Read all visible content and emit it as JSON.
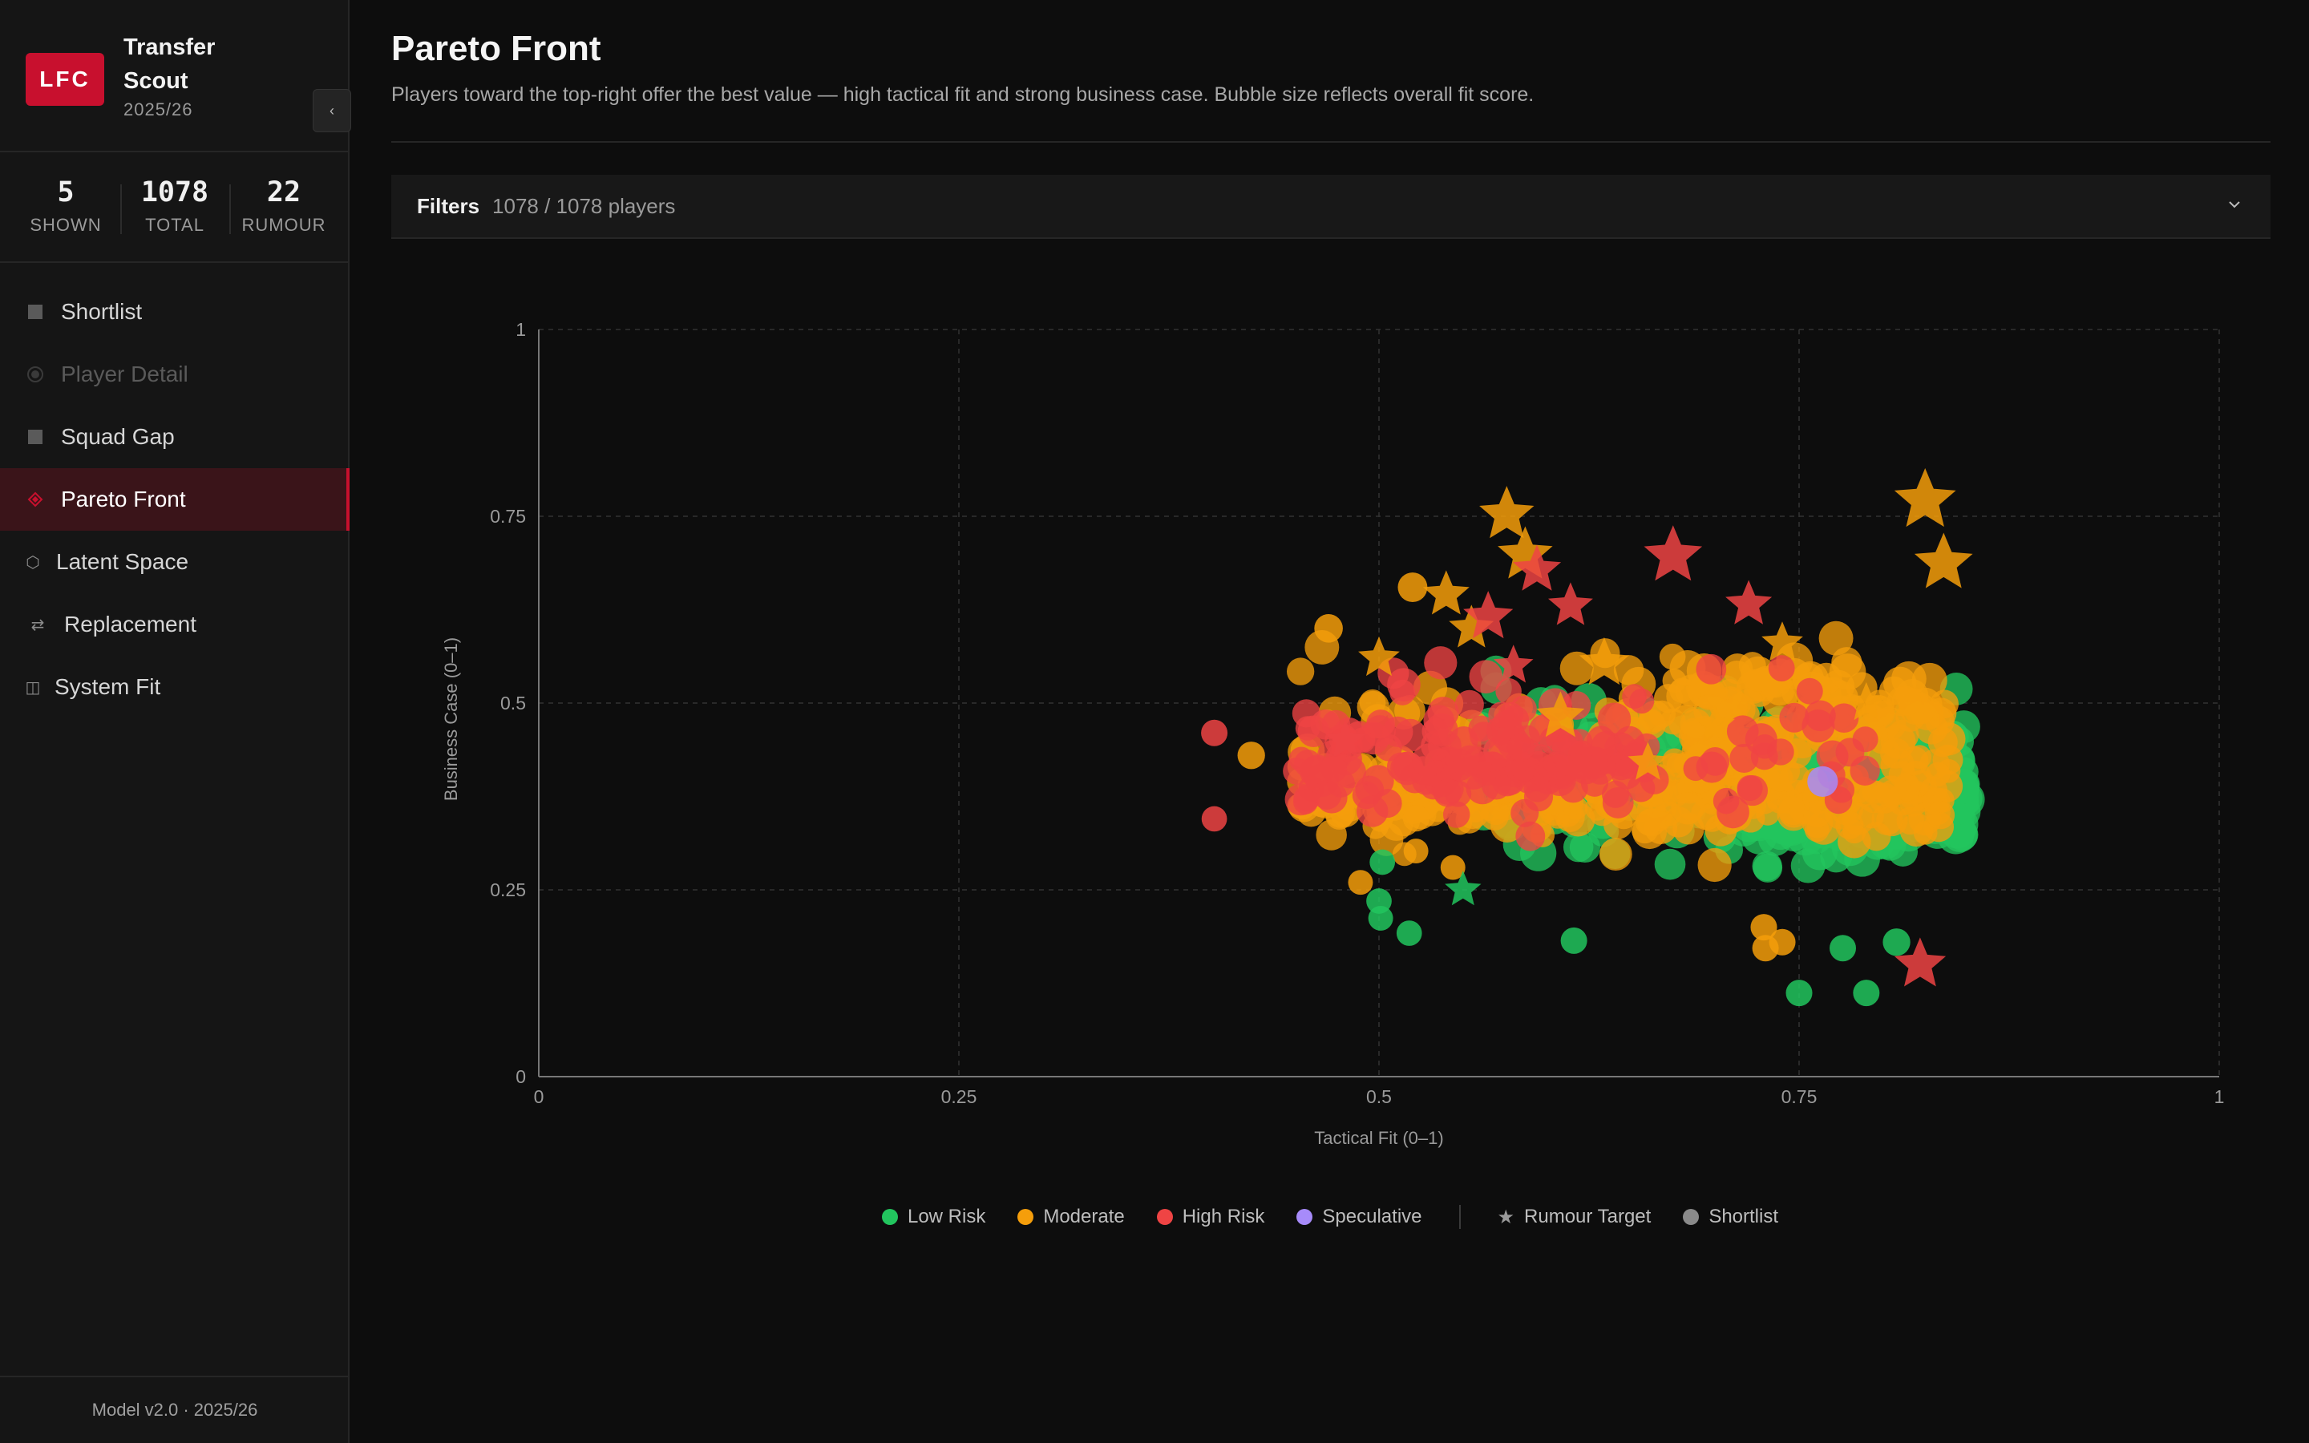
{
  "app": {
    "logo": "LFC",
    "title": "Transfer Scout",
    "season": "2025/26",
    "collapse_icon": "‹"
  },
  "stats": [
    {
      "value": "5",
      "label": "SHOWN"
    },
    {
      "value": "1078",
      "label": "TOTAL"
    },
    {
      "value": "22",
      "label": "RUMOUR"
    }
  ],
  "nav": [
    {
      "label": "Shortlist",
      "icon": "square-icon",
      "state": "normal"
    },
    {
      "label": "Player Detail",
      "icon": "radio-icon",
      "state": "disabled"
    },
    {
      "label": "Squad Gap",
      "icon": "square-icon",
      "state": "normal"
    },
    {
      "label": "Pareto Front",
      "icon": "diamond-icon",
      "state": "active"
    },
    {
      "label": "Latent Space",
      "icon": "hexagon-icon",
      "state": "normal"
    },
    {
      "label": "Replacement",
      "icon": "swap-icon",
      "state": "normal"
    },
    {
      "label": "System Fit",
      "icon": "columns-icon",
      "state": "normal"
    }
  ],
  "footer": "Model v2.0 · 2025/26",
  "page": {
    "title": "Pareto Front",
    "subtitle": "Players toward the top-right offer the best value — high tactical fit and strong business case. Bubble size reflects overall fit score."
  },
  "filters": {
    "label": "Filters",
    "count": "1078 / 1078 players"
  },
  "colors": {
    "low": "#22c55e",
    "moderate": "#f59e0b",
    "high": "#ef4444",
    "speculative": "#a78bfa",
    "shortlist": "#8a8a8a",
    "accent": "#c8102e"
  },
  "chart_data": {
    "type": "scatter",
    "xlabel": "Tactical Fit (0–1)",
    "ylabel": "Business Case (0–1)",
    "xlim": [
      0,
      1
    ],
    "ylim": [
      0,
      1
    ],
    "x_ticks": [
      "0",
      "0.25",
      "0.5",
      "0.75",
      "1"
    ],
    "y_ticks": [
      "0",
      "0.25",
      "0.5",
      "0.75",
      "1"
    ],
    "grid": true,
    "legend_placement": "bottom-center",
    "legend": [
      {
        "label": "Low Risk",
        "key": "low"
      },
      {
        "label": "Moderate",
        "key": "moderate"
      },
      {
        "label": "High Risk",
        "key": "high"
      },
      {
        "label": "Speculative",
        "key": "speculative"
      },
      {
        "label": "Rumour Target",
        "key": "rumour"
      },
      {
        "label": "Shortlist",
        "key": "shortlist"
      }
    ],
    "clusters": [
      {
        "risk": "low",
        "x": [
          0.56,
          0.85
        ],
        "y": [
          0.25,
          0.55
        ],
        "count": 220,
        "size": [
          0.55,
          1.0
        ]
      },
      {
        "risk": "low",
        "x": [
          0.72,
          0.85
        ],
        "y": [
          0.24,
          0.52
        ],
        "count": 160,
        "size": [
          0.6,
          1.0
        ]
      },
      {
        "risk": "moderate",
        "x": [
          0.45,
          0.84
        ],
        "y": [
          0.3,
          0.45
        ],
        "count": 230,
        "size": [
          0.35,
          0.85
        ]
      },
      {
        "risk": "moderate",
        "x": [
          0.45,
          0.84
        ],
        "y": [
          0.25,
          0.63
        ],
        "count": 160,
        "size": [
          0.35,
          0.9
        ]
      },
      {
        "risk": "moderate",
        "x": [
          0.68,
          0.84
        ],
        "y": [
          0.38,
          0.6
        ],
        "count": 80,
        "size": [
          0.6,
          1.0
        ]
      },
      {
        "risk": "high",
        "x": [
          0.45,
          0.66
        ],
        "y": [
          0.33,
          0.5
        ],
        "count": 120,
        "size": [
          0.45,
          0.85
        ]
      },
      {
        "risk": "high",
        "x": [
          0.45,
          0.79
        ],
        "y": [
          0.3,
          0.6
        ],
        "count": 70,
        "size": [
          0.4,
          0.85
        ]
      }
    ],
    "points": [
      {
        "x": 0.402,
        "y": 0.46,
        "size": 0.5,
        "risk": "high"
      },
      {
        "x": 0.402,
        "y": 0.345,
        "size": 0.45,
        "risk": "high"
      },
      {
        "x": 0.424,
        "y": 0.43,
        "size": 0.55,
        "risk": "moderate"
      },
      {
        "x": 0.5,
        "y": 0.235,
        "size": 0.45,
        "risk": "low"
      },
      {
        "x": 0.501,
        "y": 0.212,
        "size": 0.42,
        "risk": "low"
      },
      {
        "x": 0.518,
        "y": 0.192,
        "size": 0.45,
        "risk": "low"
      },
      {
        "x": 0.502,
        "y": 0.287,
        "size": 0.45,
        "risk": "low"
      },
      {
        "x": 0.544,
        "y": 0.28,
        "size": 0.42,
        "risk": "moderate"
      },
      {
        "x": 0.522,
        "y": 0.302,
        "size": 0.42,
        "risk": "moderate"
      },
      {
        "x": 0.489,
        "y": 0.26,
        "size": 0.42,
        "risk": "moderate"
      },
      {
        "x": 0.47,
        "y": 0.6,
        "size": 0.6,
        "risk": "moderate"
      },
      {
        "x": 0.52,
        "y": 0.655,
        "size": 0.65,
        "risk": "moderate"
      },
      {
        "x": 0.616,
        "y": 0.182,
        "size": 0.5,
        "risk": "low"
      },
      {
        "x": 0.75,
        "y": 0.112,
        "size": 0.5,
        "risk": "low"
      },
      {
        "x": 0.79,
        "y": 0.112,
        "size": 0.5,
        "risk": "low"
      },
      {
        "x": 0.776,
        "y": 0.172,
        "size": 0.5,
        "risk": "low"
      },
      {
        "x": 0.808,
        "y": 0.18,
        "size": 0.55,
        "risk": "low"
      },
      {
        "x": 0.729,
        "y": 0.2,
        "size": 0.5,
        "risk": "moderate"
      },
      {
        "x": 0.73,
        "y": 0.172,
        "size": 0.5,
        "risk": "moderate"
      },
      {
        "x": 0.74,
        "y": 0.18,
        "size": 0.5,
        "risk": "moderate"
      },
      {
        "x": 0.764,
        "y": 0.395,
        "size": 0.7,
        "risk": "speculative"
      }
    ],
    "rumour_targets": [
      {
        "x": 0.576,
        "y": 0.752,
        "size": 1.0,
        "risk": "moderate"
      },
      {
        "x": 0.587,
        "y": 0.698,
        "size": 1.0,
        "risk": "moderate"
      },
      {
        "x": 0.594,
        "y": 0.678,
        "size": 0.8,
        "risk": "high"
      },
      {
        "x": 0.675,
        "y": 0.697,
        "size": 1.1,
        "risk": "high"
      },
      {
        "x": 0.825,
        "y": 0.771,
        "size": 1.2,
        "risk": "moderate"
      },
      {
        "x": 0.836,
        "y": 0.687,
        "size": 1.1,
        "risk": "moderate"
      },
      {
        "x": 0.54,
        "y": 0.645,
        "size": 0.75,
        "risk": "moderate"
      },
      {
        "x": 0.555,
        "y": 0.6,
        "size": 0.7,
        "risk": "moderate"
      },
      {
        "x": 0.565,
        "y": 0.615,
        "size": 0.85,
        "risk": "high"
      },
      {
        "x": 0.614,
        "y": 0.63,
        "size": 0.7,
        "risk": "high"
      },
      {
        "x": 0.634,
        "y": 0.553,
        "size": 0.85,
        "risk": "moderate"
      },
      {
        "x": 0.608,
        "y": 0.482,
        "size": 0.8,
        "risk": "moderate"
      },
      {
        "x": 0.55,
        "y": 0.25,
        "size": 0.45,
        "risk": "low"
      },
      {
        "x": 0.822,
        "y": 0.15,
        "size": 0.9,
        "risk": "high"
      },
      {
        "x": 0.72,
        "y": 0.632,
        "size": 0.75,
        "risk": "high"
      },
      {
        "x": 0.74,
        "y": 0.58,
        "size": 0.6,
        "risk": "moderate"
      },
      {
        "x": 0.5,
        "y": 0.56,
        "size": 0.6,
        "risk": "moderate"
      },
      {
        "x": 0.58,
        "y": 0.55,
        "size": 0.55,
        "risk": "high"
      },
      {
        "x": 0.66,
        "y": 0.42,
        "size": 0.55,
        "risk": "moderate"
      },
      {
        "x": 0.7,
        "y": 0.47,
        "size": 0.55,
        "risk": "moderate"
      },
      {
        "x": 0.79,
        "y": 0.5,
        "size": 0.55,
        "risk": "moderate"
      },
      {
        "x": 0.48,
        "y": 0.45,
        "size": 0.55,
        "risk": "high"
      }
    ]
  }
}
